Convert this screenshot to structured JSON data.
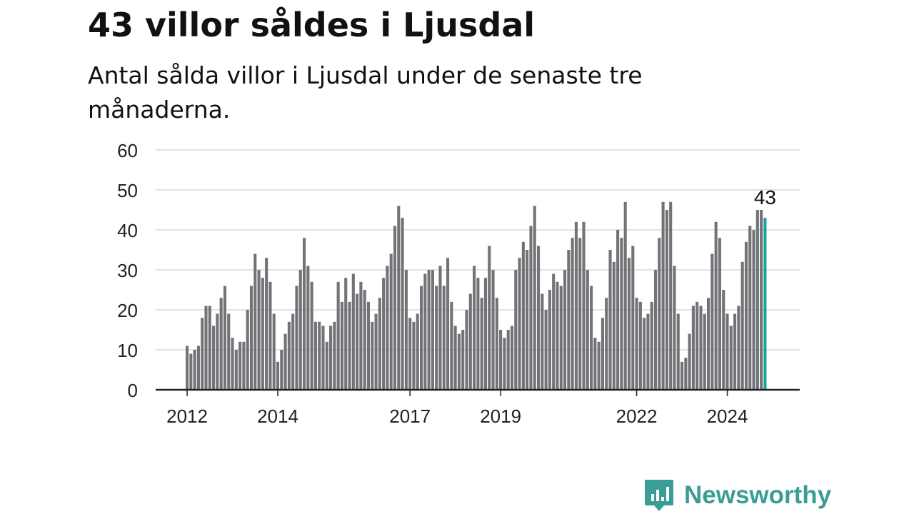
{
  "title": "43 villor såldes i Ljusdal",
  "subtitle": "Antal sålda villor i Ljusdal under de senaste tre månaderna.",
  "colors": {
    "bar": "#737277",
    "highlight": "#1aa29c",
    "grid": "#d9d9d9",
    "axis": "#222222",
    "brand": "#3a9e96"
  },
  "brand": {
    "name": "Newsworthy",
    "icon": "newsworthy-chart-bubble-icon"
  },
  "chart_data": {
    "type": "bar",
    "title": "43 villor såldes i Ljusdal",
    "subtitle": "Antal sålda villor i Ljusdal under de senaste tre månaderna.",
    "xlabel": "",
    "ylabel": "",
    "ylim": [
      0,
      60
    ],
    "yticks": [
      "0",
      "10",
      "20",
      "30",
      "40",
      "50",
      "60"
    ],
    "xtick_labels": [
      "2012",
      "2014",
      "2017",
      "2019",
      "2022",
      "2024"
    ],
    "grid": true,
    "highlight_label": "43",
    "segments": [
      {
        "label": "2012",
        "start_year": 2012,
        "values": [
          11,
          9,
          10,
          11,
          18,
          21,
          21,
          16,
          19,
          23,
          26,
          19,
          13,
          10,
          12,
          12,
          20,
          26,
          34,
          30,
          28,
          33,
          27,
          19
        ]
      },
      {
        "label": "2014",
        "start_year": 2014,
        "values": [
          7,
          10,
          14,
          17,
          19,
          26,
          30,
          38,
          31,
          27,
          17,
          17,
          16,
          12,
          16,
          17,
          27,
          22,
          28,
          22,
          29,
          24,
          27,
          25,
          22,
          17,
          19,
          23,
          28,
          31,
          34,
          41,
          46,
          43,
          30
        ]
      },
      {
        "label": "2017",
        "start_year": 2017,
        "values": [
          18,
          17,
          19,
          26,
          29,
          30,
          30,
          26,
          31,
          26,
          33,
          22,
          16,
          14,
          15,
          20,
          24,
          31,
          28,
          23,
          28,
          36,
          30,
          23
        ]
      },
      {
        "label": "2019",
        "start_year": 2019,
        "values": [
          15,
          13,
          15,
          16,
          30,
          33,
          37,
          35,
          41,
          46,
          36,
          24,
          20,
          25,
          29,
          27,
          26,
          30,
          35,
          38,
          42,
          38,
          42,
          30,
          26,
          13,
          12,
          18,
          23,
          35,
          32,
          40,
          38,
          47,
          33,
          36
        ]
      },
      {
        "label": "2022",
        "start_year": 2022,
        "values": [
          23,
          22,
          18,
          19,
          22,
          30,
          38,
          47,
          45,
          47,
          31,
          19,
          7,
          8,
          14,
          21,
          22,
          21,
          19,
          23,
          34,
          42,
          38,
          25
        ]
      },
      {
        "label": "2024",
        "start_year": 2024,
        "values": [
          19,
          16,
          19,
          21,
          32,
          37,
          41,
          40,
          45,
          45,
          43
        ]
      }
    ]
  }
}
